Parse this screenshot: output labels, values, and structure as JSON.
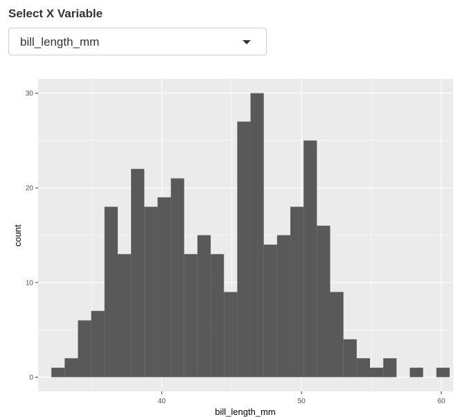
{
  "select": {
    "label": "Select X Variable",
    "value": "bill_length_mm",
    "caret_icon": "triangle-down"
  },
  "colors": {
    "panel_bg": "#EBEBEB",
    "grid": "#FFFFFF",
    "bar": "#595959",
    "tick_text": "#4D4D4D",
    "axis_title": "#000000"
  },
  "chart_data": {
    "type": "bar",
    "xlabel": "bill_length_mm",
    "ylabel": "count",
    "xlim": [
      31.15,
      60.85
    ],
    "ylim": [
      -1.5,
      31.5
    ],
    "x_ticks": [
      40,
      50,
      60
    ],
    "y_ticks": [
      0,
      10,
      20,
      30
    ],
    "grid": true,
    "bin_width": 0.95,
    "bin_starts": [
      32.1,
      33.05,
      34.0,
      34.95,
      35.9,
      36.85,
      37.8,
      38.75,
      39.7,
      40.65,
      41.6,
      42.55,
      43.5,
      44.45,
      45.4,
      46.35,
      47.3,
      48.25,
      49.2,
      50.15,
      51.1,
      52.05,
      53.0,
      53.95,
      54.9,
      55.85,
      56.8,
      57.75,
      58.7,
      59.65
    ],
    "values": [
      1,
      2,
      6,
      7,
      18,
      13,
      22,
      18,
      19,
      21,
      13,
      15,
      13,
      9,
      27,
      30,
      14,
      15,
      18,
      25,
      16,
      9,
      4,
      2,
      1,
      2,
      0,
      1,
      0,
      1
    ]
  }
}
